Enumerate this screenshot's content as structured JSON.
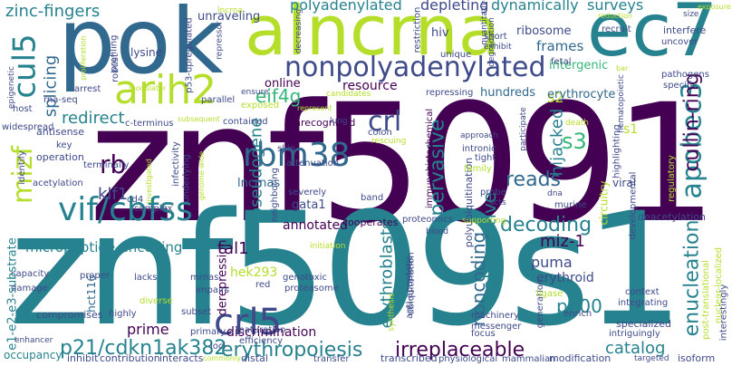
{
  "palette": {
    "purple": "#440154",
    "indigo": "#3e4a89",
    "blue": "#31688e",
    "teal": "#26828e",
    "green": "#35b779",
    "lime": "#b5de2b",
    "yellow": "#d8e219",
    "deep": "#482878"
  },
  "words": {
    "znf5091": "znf5091",
    "znf509s1": "znf509s1",
    "pok": "pok",
    "alncrna": "alncrna",
    "ec7": "ec7",
    "nonpolyadenylated": "nonpolyadenylated",
    "arih2": "arih2",
    "cul5": "cul5",
    "mizf": "mizf",
    "apobec3": "apobec3",
    "cullin_ring": "cullin-ring",
    "vif_cbfss": "vif/cbfss",
    "rbm38": "rbm38",
    "crl": "crl",
    "crl5": "crl5",
    "eif4g": "eif4g",
    "splicing": "splicing",
    "zinc_fingers": "zinc-fingers",
    "polyadenylated": "polyadenylated",
    "depleting": "depleting",
    "dynamically": "dynamically",
    "surveys": "surveys",
    "ribosome": "ribosome",
    "frames": "frames",
    "intergenic": "intergenic",
    "redirect": "redirect",
    "online": "online",
    "resource": "resource",
    "rb": "rb",
    "klf1": "klf1",
    "pseudogene": "pseudogene",
    "lncrnas": "lncrnas",
    "pervasive": "pervasive",
    "reads": "reads",
    "hijacked": "hijacked",
    "s3": "s3",
    "s2": "s2",
    "decoding": "decoding",
    "miz_1": "miz-1",
    "enucleation": "enucleation",
    "micropeptide_encoding": "micropeptide-encoding",
    "tal1": "tal1",
    "gata1": "gata1",
    "noncoding": "noncoding",
    "alternative": "alternative",
    "erythroblasts": "erythroblasts",
    "erythroid": "erythroid",
    "puma": "puma",
    "p300": "p300",
    "catalog": "catalog",
    "p21_cdkn1ak382": "p21/cdkn1ak382",
    "erythropoiesis": "erythropoiesis",
    "irreplaceable": "irreplaceable",
    "prime": "prime",
    "discrimination": "discrimination",
    "annotated": "annotated",
    "hek293": "hek293",
    "hct116": "hct116",
    "e1_e2_e3_substrate": "e1-e2-e3-substrate",
    "erythrocyte": "erythrocyte",
    "hundreds": "hundreds",
    "hiv": "hiv",
    "unraveling": "unraveling",
    "lysine": "lysine",
    "polyubiquitination": "polyubiquitination",
    "circuitry": "circuitry",
    "derepression": "derepression",
    "unrecognized": "unrecognized",
    "cooperates": "cooperates",
    "immunohistochemical": "immunohistochemical",
    "occupancy": "occupancy",
    "inhibit": "inhibit",
    "contribution": "contribution",
    "interacts": "interacts",
    "commonly": "commonly",
    "distal": "distal",
    "transfer": "transfer",
    "transcribed": "transcribed",
    "physiological": "physiological",
    "mammalian": "mammalian",
    "modification": "modification",
    "targeted": "targeted",
    "isoform": "isoform",
    "enhancer": "enhancer",
    "compromises": "compromises",
    "highly": "highly",
    "subset": "subset",
    "primary": "primary",
    "maturation": "maturation",
    "efficiency": "efficiency",
    "loci": "loci",
    "damage": "damage",
    "capacity": "capacity",
    "proper": "proper",
    "lacks": "lacks",
    "mrnas": "mrnas",
    "impairs": "impairs",
    "diverse": "diverse",
    "red": "red",
    "genotoxic": "genotoxic",
    "proteasome": "proteasome",
    "initiation": "initiation",
    "synthesis": "synthesis",
    "anti_apoptotic": "anti-apoptotic",
    "ubiquitination": "ubiquitination",
    "messenger": "messenger",
    "machinery": "machinery",
    "focus": "focus",
    "generation": "generation",
    "ligase": "ligase",
    "enrich": "enrich",
    "specialized": "specialized",
    "intriguingly": "intriguingly",
    "integrating": "integrating",
    "context": "context",
    "post_translational": "post-translational",
    "nuclear_localized": "nuclear-localized",
    "interestingly": "interestingly",
    "developmental": "developmental",
    "deacetylation": "deacetylation",
    "viral": "viral",
    "murine": "murine",
    "probe": "probe",
    "acts": "acts",
    "dna": "dna",
    "supporting": "supporting",
    "proteomics": "proteomics",
    "blood": "blood",
    "band": "band",
    "severely": "severely",
    "neighboring": "neighboring",
    "complex": "complex",
    "cd4": "cd4",
    "acetylation": "acetylation",
    "operation": "operation",
    "key": "key",
    "antisense": "antisense",
    "identify": "identify",
    "widespread": "widespread",
    "host": "host",
    "rna_seq": "rna-seq",
    "epigenetic": "epigenetic",
    "arrest": "arrest",
    "modulator": "modulator",
    "proliferation": "proliferation",
    "robust": "robust",
    "profiling": "profiling",
    "p53_upregulated": "p53-upregulated",
    "repressor": "repressor",
    "lncrna": "lncrna",
    "decreasing": "decreasing",
    "restriction": "restriction",
    "quantitative": "quantitative",
    "degradation": "degradation",
    "short": "short",
    "exhibit": "exhibit",
    "unique": "unique",
    "fetal": "fetal",
    "recruit": "recruit",
    "interfere": "interfere",
    "uncover": "uncover",
    "pathogens": "pathogens",
    "specific": "specific",
    "size": "size",
    "reduction": "reduction",
    "exposure": "exposure",
    "bar": "bar",
    "c_terminus": "c-terminus",
    "subsequent": "subsequent",
    "contained": "contained",
    "exposed": "exposed",
    "candidates": "candidates",
    "repressing": "repressing",
    "ensure": "ensure",
    "parallel": "parallel",
    "represent": "represent",
    "colon": "colon",
    "rescuing": "rescuing",
    "approach": "approach",
    "participate": "participate",
    "death": "death",
    "highlighting": "highlighting",
    "regulatory": "regulatory",
    "hematopoietic": "hematopoietic",
    "intronic": "intronic",
    "tight": "tight",
    "family": "family",
    "lung": "lung",
    "skin": "skin",
    "attenuation": "attenuation",
    "infectivity": "infectivity",
    "underlying": "underlying",
    "genome_wide": "genome-wide",
    "investigated": "investigated",
    "terminally": "terminally",
    "s1": "s1"
  }
}
